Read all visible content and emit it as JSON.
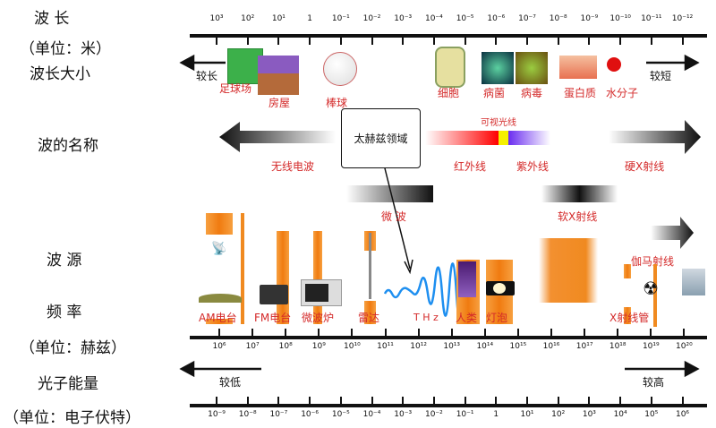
{
  "left_labels": {
    "wavelength": "波 长",
    "wavelength_unit": "（单位：米）",
    "wavelength_size": "波长大小",
    "wave_name": "波的名称",
    "source": "波 源",
    "frequency": "频 率",
    "frequency_unit": "（单位：赫兹）",
    "photon_energy": "光子能量",
    "energy_unit": "（单位：电子伏特）"
  },
  "wavelength_ticks": [
    "10³",
    "10²",
    "10¹",
    "1",
    "10⁻¹",
    "10⁻²",
    "10⁻³",
    "10⁻⁴",
    "10⁻⁵",
    "10⁻⁶",
    "10⁻⁷",
    "10⁻⁸",
    "10⁻⁹",
    "10⁻¹⁰",
    "10⁻¹¹",
    "10⁻¹²"
  ],
  "frequency_ticks": [
    "10⁶",
    "10⁷",
    "10⁸",
    "10⁹",
    "10¹⁰",
    "10¹¹",
    "10¹²",
    "10¹³",
    "10¹⁴",
    "10¹⁵",
    "10¹⁶",
    "10¹⁷",
    "10¹⁸",
    "10¹⁹",
    "10²⁰"
  ],
  "energy_ticks": [
    "10⁻⁹",
    "10⁻⁸",
    "10⁻⁷",
    "10⁻⁶",
    "10⁻⁵",
    "10⁻⁴",
    "10⁻³",
    "10⁻²",
    "10⁻¹",
    "1",
    "10¹",
    "10²",
    "10³",
    "10⁴",
    "10⁵",
    "10⁶"
  ],
  "arrows": {
    "longer": "较长",
    "shorter": "较短",
    "lower": "较低",
    "higher": "较高"
  },
  "size_objects": [
    "足球场",
    "房屋",
    "棒球",
    "细胞",
    "病菌",
    "病毒",
    "蛋白质",
    "水分子"
  ],
  "wave_names": {
    "radio": "无线电波",
    "thz_box": "太赫兹领域",
    "visible": "可视光线",
    "infrared": "红外线",
    "ultraviolet": "紫外线",
    "hard_xray": "硬X射线",
    "microwave": "微 波",
    "soft_xray": "软X射线",
    "gamma": "伽马射线"
  },
  "sources": [
    "AM电台",
    "FM电台",
    "微波炉",
    "雷达",
    "T H z",
    "人类",
    "灯泡",
    "X射线管"
  ],
  "colors": {
    "label_red": "#d42a2a",
    "orange": "#f07b10",
    "thz_wave": "#1e8ff0"
  }
}
